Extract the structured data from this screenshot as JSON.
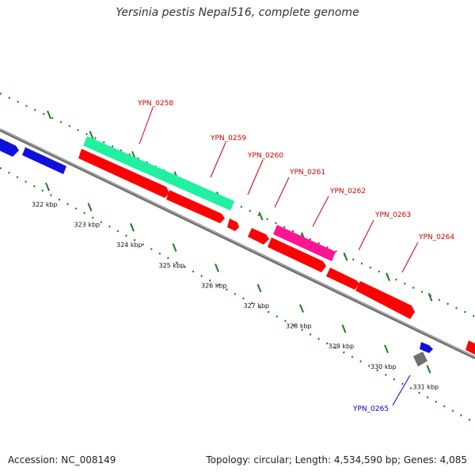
{
  "title": "Yersinia pestis Nepal516, complete genome",
  "footer": {
    "accession": "Accession: NC_008149",
    "summary": "Topology: circular; Length: 4,534,590 bp; Genes: 4,085"
  },
  "colors": {
    "backbone": "#8a8a8a",
    "tick": "#1f7a1f",
    "label_red": "#cc0000",
    "label_blue": "#0000cc"
  },
  "ticks": [
    "322 kbp",
    "323 kbp",
    "324 kbp",
    "325 kbp",
    "326 kbp",
    "327 kbp",
    "328 kbp",
    "329 kbp",
    "330 kbp",
    "331 kbp"
  ],
  "genes": [
    {
      "name": "",
      "color": "#1010dd",
      "strand": "forward",
      "track": "outer"
    },
    {
      "name": "",
      "color": "#1010dd",
      "strand": "forward",
      "track": "outer"
    },
    {
      "name": "YPN_0258",
      "color": "#20f0a0",
      "strand": "forward",
      "track": "outer2"
    },
    {
      "name": "YPN_0259",
      "color": "#ff0000",
      "strand": "forward",
      "track": "outer"
    },
    {
      "name": "YPN_0260",
      "color": "#ff0000",
      "strand": "forward",
      "track": "outer"
    },
    {
      "name": "YPN_0261",
      "color": "#ff0000",
      "strand": "forward",
      "track": "outer"
    },
    {
      "name": "YPN_0262",
      "color": "#ff1493",
      "strand": "forward",
      "track": "outer2"
    },
    {
      "name": "YPN_0263",
      "color": "#ff0000",
      "strand": "forward",
      "track": "outer"
    },
    {
      "name": "YPN_0264",
      "color": "#ff0000",
      "strand": "forward",
      "track": "outer"
    },
    {
      "name": "YPN_0265",
      "color": "#1010dd",
      "strand": "forward",
      "track": "outer"
    },
    {
      "name": "",
      "color": "#707070",
      "strand": "forward",
      "track": "outer"
    },
    {
      "name": "",
      "color": "#ff0000",
      "strand": "forward",
      "track": "outer"
    }
  ]
}
